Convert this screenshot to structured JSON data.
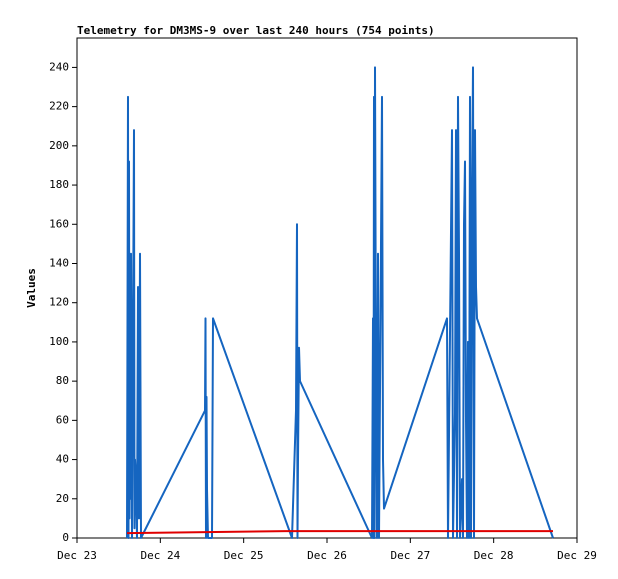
{
  "chart_data": {
    "type": "line",
    "title": "Telemetry for DM3MS-9 over last 240 hours (754 points)",
    "ylabel": "Values",
    "xlim": [
      0,
      6
    ],
    "xticks": [
      {
        "value": 0,
        "label": "Dec 23"
      },
      {
        "value": 1,
        "label": "Dec 24"
      },
      {
        "value": 2,
        "label": "Dec 25"
      },
      {
        "value": 3,
        "label": "Dec 26"
      },
      {
        "value": 4,
        "label": "Dec 27"
      },
      {
        "value": 5,
        "label": "Dec 28"
      },
      {
        "value": 6,
        "label": "Dec 29"
      }
    ],
    "ylim": [
      0,
      255
    ],
    "yticks": [
      0,
      20,
      40,
      60,
      80,
      100,
      120,
      140,
      160,
      180,
      200,
      220,
      240
    ],
    "series": [
      {
        "color": "#1565c0",
        "x": [
          0.6,
          0.612,
          0.618,
          0.624,
          0.63,
          0.636,
          0.642,
          0.648,
          0.66,
          0.684,
          0.69,
          0.696,
          0.708,
          0.72,
          0.732,
          0.744,
          0.756,
          0.768,
          1.536,
          1.542,
          1.548,
          1.554,
          1.56,
          1.572,
          1.62,
          1.632,
          2.58,
          2.628,
          2.64,
          2.646,
          2.652,
          2.664,
          2.676,
          3.54,
          3.552,
          3.558,
          3.564,
          3.57,
          3.576,
          3.588,
          3.6,
          3.612,
          3.624,
          3.66,
          3.672,
          3.684,
          4.44,
          4.452,
          4.5,
          4.512,
          4.536,
          4.548,
          4.56,
          4.572,
          4.584,
          4.596,
          4.62,
          4.632,
          4.644,
          4.656,
          4.668,
          4.68,
          4.692,
          4.704,
          4.716,
          4.728,
          4.74,
          4.752,
          4.764,
          4.776,
          4.788,
          4.8,
          5.712
        ],
        "values": [
          0,
          225,
          0,
          192,
          10,
          128,
          20,
          145,
          0,
          208,
          5,
          40,
          30,
          0,
          128,
          10,
          145,
          0,
          65,
          112,
          0,
          72,
          25,
          0,
          0,
          112,
          0,
          65,
          160,
          0,
          40,
          97,
          80,
          0,
          112,
          0,
          225,
          0,
          240,
          80,
          0,
          145,
          0,
          225,
          40,
          15,
          112,
          0,
          208,
          0,
          64,
          208,
          0,
          225,
          145,
          0,
          30,
          0,
          160,
          192,
          60,
          0,
          100,
          0,
          225,
          0,
          170,
          240,
          0,
          208,
          128,
          112,
          0
        ]
      },
      {
        "color": "#e00000",
        "x": [
          0.6,
          2.5,
          5.712
        ],
        "values": [
          2.5,
          3.5,
          3.5
        ]
      }
    ]
  }
}
